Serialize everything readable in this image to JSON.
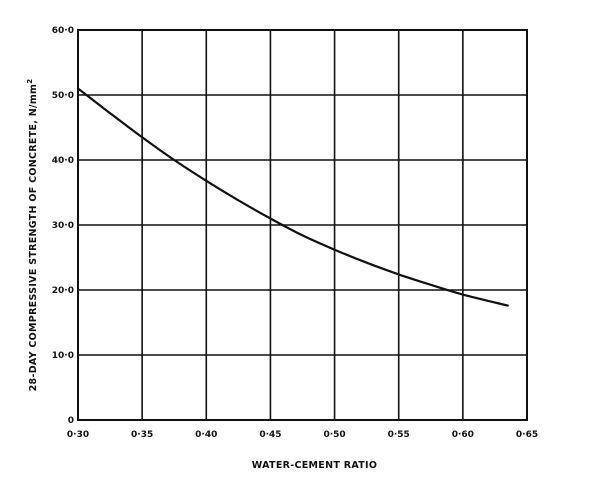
{
  "chart_data": {
    "type": "line",
    "title": "",
    "xlabel": "WATER-CEMENT RATIO",
    "ylabel": "28-DAY COMPRESSIVE STRENGTH OF CONCRETE, N/mm",
    "ylabel_superscript": "2",
    "xlim": [
      0.3,
      0.65
    ],
    "ylim": [
      0,
      60
    ],
    "x_ticks": [
      0.3,
      0.35,
      0.4,
      0.45,
      0.5,
      0.55,
      0.6,
      0.65
    ],
    "x_tick_labels": [
      "0·30",
      "0·35",
      "0·40",
      "0·45",
      "0·50",
      "0·55",
      "0·60",
      "0·65"
    ],
    "y_ticks": [
      0,
      10,
      20,
      30,
      40,
      50,
      60
    ],
    "y_tick_labels": [
      "0",
      "10·0",
      "20·0",
      "30·0",
      "40·0",
      "50·0",
      "60·0"
    ],
    "grid": true,
    "legend": "none",
    "series": [
      {
        "x": [
          0.3,
          0.325,
          0.35,
          0.375,
          0.4,
          0.425,
          0.45,
          0.475,
          0.5,
          0.525,
          0.55,
          0.575,
          0.6,
          0.635
        ],
        "y": [
          51.0,
          47.2,
          43.5,
          40.0,
          36.8,
          33.8,
          31.0,
          28.4,
          26.2,
          24.2,
          22.4,
          20.8,
          19.3,
          17.6
        ]
      }
    ]
  }
}
